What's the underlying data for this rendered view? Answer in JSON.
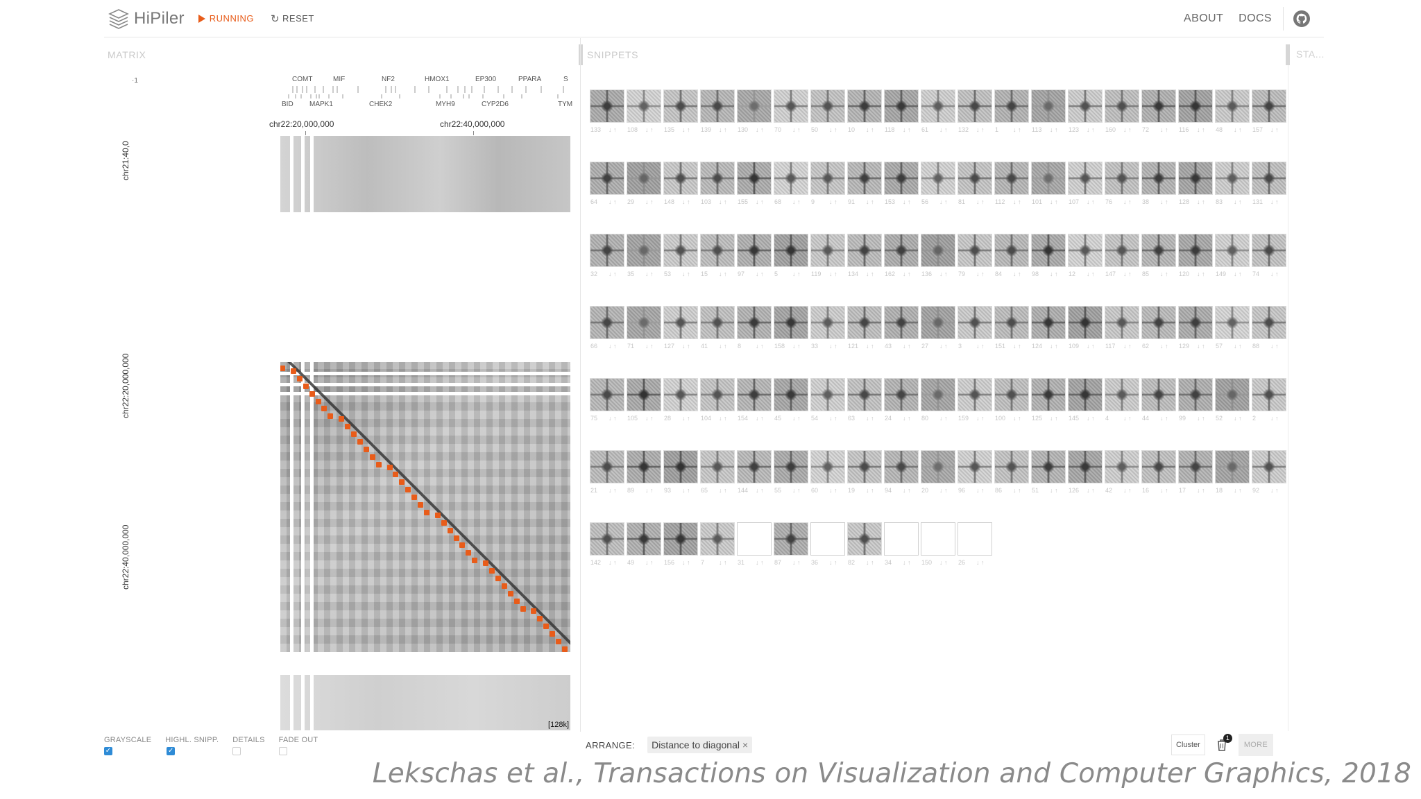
{
  "header": {
    "app_name": "HiPiler",
    "run_label": "RUNNING",
    "reset_label": "RESET",
    "nav": [
      "ABOUT",
      "DOCS"
    ],
    "github_label": "GitHub"
  },
  "matrix": {
    "title": "MATRIX",
    "genes_top": [
      "COMT",
      "MIF",
      "NF2",
      "HMOX1",
      "EP300",
      "PPARA",
      "S"
    ],
    "genes_bottom": [
      "BID",
      "MAPK1",
      "CHEK2",
      "MYH9",
      "CYP2D6",
      "TYM"
    ],
    "axis_top": [
      "chr22:20,000,000",
      "chr22:40,000,000"
    ],
    "axis_left": [
      "chr21:40,0",
      "chr22:20,000,000",
      "chr22:40,000,000"
    ],
    "corner_label": "·1",
    "resolution": "[128k]",
    "options": [
      {
        "label": "GRAYSCALE",
        "checked": true
      },
      {
        "label": "HIGHL. SNIPP.",
        "checked": true
      },
      {
        "label": "DETAILS",
        "checked": false
      },
      {
        "label": "FADE OUT",
        "checked": false
      }
    ]
  },
  "snippets": {
    "title": "SNIPPETS",
    "arrange_label": "ARRANGE:",
    "arrange_chip": "Distance to diagonal",
    "cluster_label": "Cluster",
    "trash_count": "1",
    "more_label": "MORE",
    "items": [
      "133",
      "108",
      "135",
      "139",
      "130",
      "70",
      "50",
      "10",
      "118",
      "61",
      "132",
      "1",
      "113",
      "123",
      "160",
      "72",
      "116",
      "48",
      "157",
      "64",
      "29",
      "148",
      "103",
      "155",
      "68",
      "9",
      "91",
      "153",
      "56",
      "81",
      "112",
      "101",
      "107",
      "76",
      "38",
      "128",
      "83",
      "131",
      "32",
      "35",
      "53",
      "15",
      "97",
      "5",
      "119",
      "134",
      "162",
      "136",
      "79",
      "84",
      "98",
      "12",
      "147",
      "85",
      "120",
      "149",
      "74",
      "66",
      "71",
      "127",
      "41",
      "8",
      "158",
      "33",
      "121",
      "43",
      "27",
      "3",
      "151",
      "124",
      "109",
      "117",
      "62",
      "129",
      "57",
      "88",
      "75",
      "105",
      "28",
      "104",
      "154",
      "45",
      "54",
      "63",
      "24",
      "80",
      "159",
      "100",
      "125",
      "145",
      "4",
      "44",
      "99",
      "52",
      "2",
      "21",
      "89",
      "93",
      "65",
      "144",
      "55",
      "60",
      "19",
      "94",
      "20",
      "96",
      "86",
      "51",
      "126",
      "42",
      "16",
      "17",
      "18",
      "92",
      "142",
      "49",
      "156",
      "7",
      "31",
      "87",
      "36",
      "82",
      "34",
      "150",
      "26"
    ],
    "blank_items": [
      "31",
      "36",
      "34",
      "150",
      "26"
    ]
  },
  "stats": {
    "title": "STA..."
  },
  "caption": "Lekschas et al., Transactions on Visualization and Computer Graphics, 2018"
}
